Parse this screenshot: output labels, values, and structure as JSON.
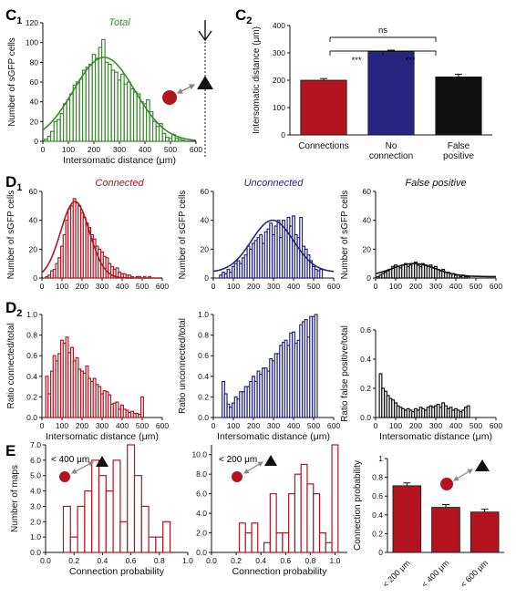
{
  "colors": {
    "green": "#3a8a2e",
    "red": "#b3141f",
    "blue": "#262682",
    "black": "#111111",
    "grey": "#888888"
  },
  "text": {
    "c_label": "C",
    "c1_sub": "1",
    "c2_sub": "2",
    "d_label": "D",
    "d1_sub": "1",
    "d2_sub": "2",
    "e_label": "E",
    "um": "Intersomatic distance (μm)",
    "ns": "ns",
    "stars": "***"
  },
  "chart_data": [
    {
      "id": "c1",
      "type": "bar",
      "title": "Total",
      "ylabel": "Number of sGFP cells",
      "xlabel": "Intersomatic distance (μm)",
      "xlim": [
        0,
        600
      ],
      "ylim": [
        0,
        120
      ],
      "xticks": [
        0,
        100,
        200,
        300,
        400,
        500,
        600
      ],
      "yticks": [
        0,
        20,
        40,
        60,
        80,
        100,
        120
      ],
      "bin_width": 12.5,
      "x": [
        12,
        25,
        37,
        50,
        62,
        75,
        87,
        100,
        112,
        125,
        137,
        150,
        162,
        175,
        187,
        200,
        212,
        225,
        237,
        250,
        262,
        275,
        287,
        300,
        312,
        325,
        337,
        350,
        362,
        375,
        387,
        400,
        412,
        425,
        437,
        450,
        462,
        475,
        487,
        500,
        512,
        525,
        537,
        550
      ],
      "values": [
        2,
        5,
        10,
        20,
        22,
        28,
        38,
        42,
        48,
        57,
        60,
        63,
        72,
        75,
        78,
        88,
        84,
        95,
        103,
        80,
        78,
        72,
        70,
        62,
        68,
        58,
        60,
        53,
        50,
        48,
        40,
        38,
        42,
        30,
        20,
        15,
        18,
        8,
        4,
        3,
        7,
        3,
        2,
        1
      ],
      "fit": {
        "mean": 240,
        "sd": 120,
        "peak": 85
      }
    },
    {
      "id": "c2",
      "type": "bar",
      "ylabel": "Intersomatic distance (μm)",
      "ylim": [
        0,
        400
      ],
      "yticks": [
        0,
        100,
        200,
        300,
        400
      ],
      "categories": [
        "Connections",
        "No\nconnection",
        "False\npositive"
      ],
      "values": [
        200,
        305,
        212
      ],
      "errors": [
        6,
        5,
        10
      ]
    },
    {
      "id": "d1a",
      "type": "bar",
      "title": "Connected",
      "ylabel": "Number of sGFP cells",
      "xlim": [
        0,
        600
      ],
      "ylim": [
        0,
        60
      ],
      "xticks": [
        0,
        100,
        200,
        300,
        400,
        500,
        600
      ],
      "yticks": [
        0,
        20,
        40,
        60
      ],
      "bin_width": 12.5,
      "x": [
        12,
        25,
        37,
        50,
        62,
        75,
        87,
        100,
        112,
        125,
        137,
        150,
        162,
        175,
        187,
        200,
        212,
        225,
        237,
        250,
        262,
        275,
        287,
        300,
        312,
        325,
        337,
        350,
        362,
        375,
        387,
        400,
        412,
        425,
        437,
        450,
        462,
        475,
        487,
        500,
        512,
        525,
        537
      ],
      "values": [
        0,
        1,
        2,
        5,
        6,
        10,
        14,
        22,
        30,
        40,
        48,
        50,
        55,
        52,
        50,
        45,
        42,
        38,
        35,
        30,
        27,
        22,
        20,
        18,
        15,
        14,
        10,
        8,
        6,
        7,
        4,
        3,
        3,
        2,
        2,
        1,
        0,
        1,
        1,
        0,
        1,
        0,
        1
      ],
      "fit": {
        "mean": 165,
        "sd": 72,
        "peak": 53
      }
    },
    {
      "id": "d1b",
      "type": "bar",
      "title": "Unconnected",
      "ylabel": "Number of sGFP cells",
      "xlim": [
        0,
        600
      ],
      "ylim": [
        0,
        60
      ],
      "xticks": [
        0,
        100,
        200,
        300,
        400,
        500,
        600
      ],
      "yticks": [
        0,
        20,
        40,
        60
      ],
      "bin_width": 12.5,
      "x": [
        37,
        50,
        62,
        75,
        87,
        100,
        112,
        125,
        137,
        150,
        162,
        175,
        187,
        200,
        212,
        225,
        237,
        250,
        262,
        275,
        287,
        300,
        312,
        325,
        337,
        350,
        362,
        375,
        387,
        400,
        412,
        425,
        437,
        450,
        462,
        475,
        487,
        500,
        512,
        525,
        537
      ],
      "values": [
        2,
        4,
        3,
        6,
        4,
        8,
        10,
        12,
        10,
        14,
        16,
        22,
        20,
        24,
        26,
        28,
        30,
        24,
        32,
        34,
        38,
        30,
        36,
        40,
        28,
        40,
        33,
        42,
        36,
        43,
        30,
        28,
        42,
        22,
        20,
        16,
        12,
        8,
        6,
        5,
        6
      ],
      "fit": {
        "mean": 295,
        "sd": 105,
        "peak": 40,
        "base": 4
      }
    },
    {
      "id": "d1c",
      "type": "bar",
      "title": "False positive",
      "ylabel": "Number of sGFP cells",
      "xlim": [
        0,
        600
      ],
      "ylim": [
        0,
        60
      ],
      "xticks": [
        0,
        100,
        200,
        300,
        400,
        500,
        600
      ],
      "yticks": [
        0,
        20,
        40,
        60
      ],
      "bin_width": 12.5,
      "x": [
        12,
        25,
        37,
        50,
        62,
        75,
        87,
        100,
        112,
        125,
        137,
        150,
        162,
        175,
        187,
        200,
        212,
        225,
        237,
        250,
        262,
        275,
        287,
        300,
        312,
        325,
        337,
        350,
        362,
        375,
        387,
        400,
        412,
        425,
        437,
        450,
        462
      ],
      "values": [
        1,
        2,
        3,
        4,
        5,
        6,
        8,
        9,
        8,
        7,
        9,
        10,
        8,
        9,
        10,
        11,
        9,
        8,
        10,
        9,
        8,
        9,
        7,
        8,
        6,
        5,
        6,
        4,
        4,
        3,
        3,
        2,
        2,
        1,
        2,
        1,
        1
      ],
      "fit": {
        "mean": 190,
        "sd": 110,
        "peak": 10,
        "base": 1
      }
    },
    {
      "id": "d2a",
      "type": "bar",
      "ylabel": "Ratio connected/total",
      "xlabel": "Intersomatic distance (μm)",
      "xlim": [
        0,
        600
      ],
      "ylim": [
        0,
        1.0
      ],
      "xticks": [
        0,
        100,
        200,
        300,
        400,
        500,
        600
      ],
      "yticks": [
        0,
        0.2,
        0.4,
        0.6,
        0.8,
        1.0
      ],
      "bin_width": 12.5,
      "x": [
        25,
        37,
        50,
        62,
        75,
        87,
        100,
        112,
        125,
        137,
        150,
        162,
        175,
        187,
        200,
        212,
        225,
        237,
        250,
        262,
        275,
        287,
        300,
        312,
        325,
        337,
        350,
        362,
        375,
        387,
        400,
        412,
        425,
        437,
        450,
        462,
        475,
        487,
        500
      ],
      "values": [
        0.4,
        0.23,
        0.45,
        0.6,
        0.55,
        0.62,
        0.75,
        0.72,
        0.78,
        0.63,
        0.68,
        0.55,
        0.58,
        0.47,
        0.45,
        0.43,
        0.5,
        0.38,
        0.35,
        0.38,
        0.32,
        0.3,
        0.23,
        0.26,
        0.25,
        0.22,
        0.13,
        0.14,
        0.15,
        0.08,
        0.12,
        0.08,
        0.07,
        0.05,
        0.06,
        0.04,
        0.04,
        0.03,
        0.2
      ]
    },
    {
      "id": "d2b",
      "type": "bar",
      "ylabel": "Ratio unconnected/total",
      "xlabel": "Intersomatic distance (μm)",
      "xlim": [
        0,
        600
      ],
      "ylim": [
        0,
        1.0
      ],
      "xticks": [
        0,
        100,
        200,
        300,
        400,
        500,
        600
      ],
      "yticks": [
        0,
        0.2,
        0.4,
        0.6,
        0.8,
        1.0
      ],
      "bin_width": 12.5,
      "x": [
        50,
        62,
        75,
        87,
        100,
        112,
        125,
        137,
        150,
        162,
        175,
        187,
        200,
        212,
        225,
        237,
        250,
        262,
        275,
        287,
        300,
        312,
        325,
        337,
        350,
        362,
        375,
        387,
        400,
        412,
        425,
        437,
        450,
        462,
        475,
        487,
        500,
        512
      ],
      "values": [
        0.35,
        0.23,
        0.13,
        0.1,
        0.14,
        0.2,
        0.18,
        0.25,
        0.25,
        0.3,
        0.3,
        0.35,
        0.4,
        0.35,
        0.45,
        0.42,
        0.48,
        0.48,
        0.45,
        0.57,
        0.55,
        0.62,
        0.62,
        0.7,
        0.73,
        0.75,
        0.7,
        0.82,
        0.83,
        0.72,
        0.75,
        0.9,
        0.93,
        0.95,
        0.78,
        0.98,
        0.98,
        1.0
      ]
    },
    {
      "id": "d2c",
      "type": "bar",
      "ylabel": "Ratio false positive/total",
      "xlabel": "Intersomatic distance (μm)",
      "xlim": [
        0,
        600
      ],
      "ylim": [
        0,
        0.6
      ],
      "xticks": [
        0,
        100,
        200,
        300,
        400,
        500,
        600
      ],
      "yticks": [
        0,
        0.2,
        0.4,
        0.6
      ],
      "bin_width": 12.5,
      "x": [
        25,
        37,
        50,
        62,
        75,
        87,
        100,
        112,
        125,
        137,
        150,
        162,
        175,
        187,
        200,
        212,
        225,
        237,
        250,
        262,
        275,
        287,
        300,
        312,
        325,
        337,
        350,
        362,
        375,
        387,
        400,
        412,
        425,
        437,
        450,
        462
      ],
      "values": [
        0.3,
        0.2,
        0.18,
        0.15,
        0.13,
        0.12,
        0.1,
        0.08,
        0.07,
        0.06,
        0.05,
        0.06,
        0.05,
        0.04,
        0.06,
        0.05,
        0.07,
        0.06,
        0.05,
        0.07,
        0.08,
        0.07,
        0.08,
        0.09,
        0.07,
        0.1,
        0.08,
        0.06,
        0.07,
        0.05,
        0.06,
        0.05,
        0.04,
        0.05,
        0.07,
        0.08
      ]
    },
    {
      "id": "e1",
      "type": "bar",
      "ylabel": "Number of maps",
      "xlabel": "Connection probability",
      "annotation": "< 400 μm",
      "xlim": [
        0,
        1.0
      ],
      "ylim": [
        0,
        7
      ],
      "xticks": [
        0.0,
        0.2,
        0.4,
        0.6,
        0.8,
        1.0
      ],
      "yticks": [
        0,
        1,
        2,
        3,
        4,
        5,
        6,
        7
      ],
      "bin_width": 0.05,
      "x": [
        0.15,
        0.2,
        0.25,
        0.3,
        0.35,
        0.4,
        0.45,
        0.5,
        0.55,
        0.6,
        0.65,
        0.7,
        0.75,
        0.8,
        0.85
      ],
      "values": [
        3,
        1,
        3,
        4,
        6,
        5,
        4,
        6,
        2,
        7,
        5,
        3,
        1,
        1,
        2
      ]
    },
    {
      "id": "e2",
      "type": "bar",
      "ylabel": "",
      "xlabel": "Connection probability",
      "annotation": "< 200 μm",
      "xlim": [
        0,
        1.1
      ],
      "ylim": [
        0,
        11
      ],
      "xticks": [
        0.0,
        0.2,
        0.4,
        0.6,
        0.8,
        1.0
      ],
      "yticks": [
        0,
        2,
        4,
        6,
        8,
        10
      ],
      "bin_width": 0.05,
      "x": [
        0.25,
        0.3,
        0.35,
        0.4,
        0.45,
        0.5,
        0.55,
        0.6,
        0.65,
        0.7,
        0.75,
        0.8,
        0.85,
        0.9,
        0.95,
        1.0
      ],
      "values": [
        3,
        2,
        3,
        0,
        1,
        6,
        2,
        2,
        6,
        8,
        9,
        7,
        6,
        2,
        1,
        11
      ]
    },
    {
      "id": "e3",
      "type": "bar",
      "ylabel": "Connection probability",
      "ylim": [
        0,
        1.0
      ],
      "yticks": [
        0,
        0.2,
        0.4,
        0.6,
        0.8,
        1.0
      ],
      "categories": [
        "< 200 μm",
        "< 400 μm",
        "< 600 μm"
      ],
      "values": [
        0.71,
        0.48,
        0.43
      ],
      "errors": [
        0.03,
        0.03,
        0.03
      ]
    }
  ]
}
